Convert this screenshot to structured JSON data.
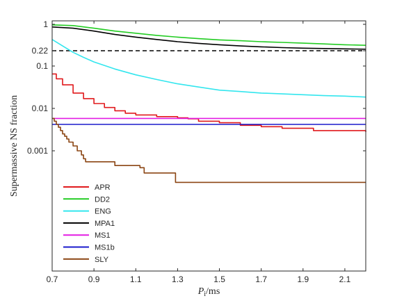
{
  "chart_data": {
    "type": "line",
    "title": "",
    "xlabel": "P_i/ms",
    "ylabel": "Supermassive NS fraction",
    "xlim": [
      0.7,
      2.2
    ],
    "ylim_visual_note": "split log axis",
    "x_ticks": [
      "0.7",
      "0.9",
      "1.1",
      "1.3",
      "1.5",
      "1.7",
      "1.9",
      "2.1"
    ],
    "y_ticks": [
      "1",
      "0.22",
      "0.1",
      "0.01",
      "0.001"
    ],
    "reference_line": {
      "y": 0.22,
      "style": "dashed",
      "color": "#000000"
    },
    "legend_position": "bottom-left",
    "series": [
      {
        "name": "APR",
        "color": "#e0191c",
        "step": true,
        "points": [
          [
            0.7,
            0.065
          ],
          [
            0.72,
            0.05
          ],
          [
            0.75,
            0.036
          ],
          [
            0.8,
            0.023
          ],
          [
            0.85,
            0.017
          ],
          [
            0.9,
            0.013
          ],
          [
            0.95,
            0.0105
          ],
          [
            1.0,
            0.0088
          ],
          [
            1.05,
            0.0077
          ],
          [
            1.1,
            0.007
          ],
          [
            1.2,
            0.0064
          ],
          [
            1.3,
            0.006
          ],
          [
            1.35,
            0.0057
          ],
          [
            1.4,
            0.005
          ],
          [
            1.5,
            0.0046
          ],
          [
            1.6,
            0.004
          ],
          [
            1.7,
            0.0037
          ],
          [
            1.8,
            0.0034
          ],
          [
            1.95,
            0.003
          ],
          [
            2.2,
            0.0028
          ]
        ]
      },
      {
        "name": "DD2",
        "color": "#22cc22",
        "step": false,
        "points": [
          [
            0.7,
            0.97
          ],
          [
            0.8,
            0.93
          ],
          [
            0.9,
            0.8
          ],
          [
            1.0,
            0.68
          ],
          [
            1.1,
            0.6
          ],
          [
            1.2,
            0.53
          ],
          [
            1.3,
            0.48
          ],
          [
            1.4,
            0.44
          ],
          [
            1.5,
            0.41
          ],
          [
            1.6,
            0.39
          ],
          [
            1.7,
            0.37
          ],
          [
            1.8,
            0.355
          ],
          [
            1.9,
            0.34
          ],
          [
            2.0,
            0.325
          ],
          [
            2.1,
            0.31
          ],
          [
            2.2,
            0.3
          ]
        ]
      },
      {
        "name": "ENG",
        "color": "#33e6ee",
        "step": false,
        "points": [
          [
            0.7,
            0.42
          ],
          [
            0.75,
            0.29
          ],
          [
            0.8,
            0.21
          ],
          [
            0.85,
            0.16
          ],
          [
            0.9,
            0.125
          ],
          [
            1.0,
            0.085
          ],
          [
            1.1,
            0.062
          ],
          [
            1.2,
            0.048
          ],
          [
            1.3,
            0.038
          ],
          [
            1.4,
            0.032
          ],
          [
            1.5,
            0.027
          ],
          [
            1.6,
            0.025
          ],
          [
            1.7,
            0.023
          ],
          [
            1.8,
            0.022
          ],
          [
            1.9,
            0.021
          ],
          [
            2.0,
            0.02
          ],
          [
            2.1,
            0.0195
          ],
          [
            2.2,
            0.0185
          ]
        ]
      },
      {
        "name": "MPA1",
        "color": "#000000",
        "step": false,
        "points": [
          [
            0.7,
            0.86
          ],
          [
            0.8,
            0.8
          ],
          [
            0.9,
            0.68
          ],
          [
            1.0,
            0.56
          ],
          [
            1.1,
            0.48
          ],
          [
            1.2,
            0.42
          ],
          [
            1.3,
            0.37
          ],
          [
            1.4,
            0.335
          ],
          [
            1.5,
            0.31
          ],
          [
            1.6,
            0.29
          ],
          [
            1.7,
            0.275
          ],
          [
            1.8,
            0.263
          ],
          [
            1.9,
            0.255
          ],
          [
            2.0,
            0.25
          ],
          [
            2.1,
            0.245
          ],
          [
            2.2,
            0.24
          ]
        ]
      },
      {
        "name": "MS1",
        "color": "#e31ce3",
        "step": false,
        "points": [
          [
            0.7,
            0.0058
          ],
          [
            2.2,
            0.0058
          ]
        ]
      },
      {
        "name": "MS1b",
        "color": "#1a1acc",
        "step": false,
        "points": [
          [
            0.7,
            0.0042
          ],
          [
            2.2,
            0.0042
          ]
        ]
      },
      {
        "name": "SLY",
        "color": "#8b4513",
        "step": true,
        "points": [
          [
            0.7,
            0.0058
          ],
          [
            0.71,
            0.005
          ],
          [
            0.72,
            0.0042
          ],
          [
            0.73,
            0.0036
          ],
          [
            0.74,
            0.003
          ],
          [
            0.75,
            0.0025
          ],
          [
            0.76,
            0.0022
          ],
          [
            0.77,
            0.0019
          ],
          [
            0.78,
            0.0016
          ],
          [
            0.8,
            0.0013
          ],
          [
            0.82,
            0.001
          ],
          [
            0.84,
            0.0008
          ],
          [
            0.85,
            0.00065
          ],
          [
            0.86,
            0.00055
          ],
          [
            1.0,
            0.00055
          ],
          [
            1.0,
            0.00045
          ],
          [
            1.12,
            0.00045
          ],
          [
            1.12,
            0.0004
          ],
          [
            1.14,
            0.0004
          ],
          [
            1.14,
            0.0003
          ],
          [
            1.29,
            0.0003
          ],
          [
            1.29,
            0.00018
          ],
          [
            2.2,
            0.00018
          ]
        ]
      }
    ]
  }
}
